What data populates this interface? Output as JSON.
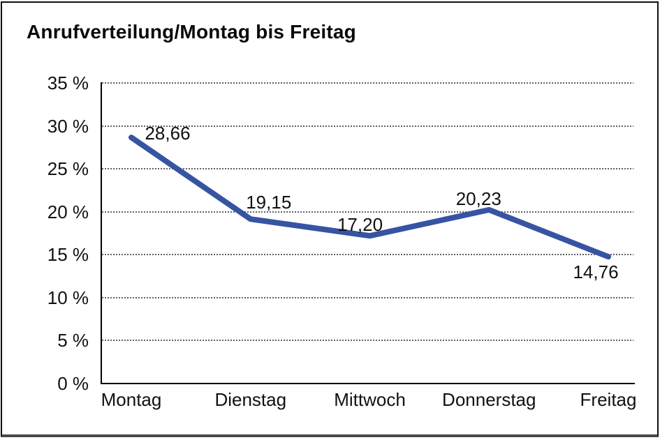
{
  "title": "Anrufverteilung/Montag bis Freitag",
  "colors": {
    "line": "#3754A3",
    "grid": "#5f5f5f",
    "axis": "#000000",
    "text": "#111111",
    "background": "#ffffff"
  },
  "chart_data": {
    "type": "line",
    "title": "Anrufverteilung/Montag bis Freitag",
    "categories": [
      "Montag",
      "Dienstag",
      "Mittwoch",
      "Donnerstag",
      "Freitag"
    ],
    "values": [
      28.66,
      19.15,
      17.2,
      20.23,
      14.76
    ],
    "value_labels": [
      "28,66",
      "19,15",
      "17,20",
      "20,23",
      "14,76"
    ],
    "ylabel": "%",
    "ylim": [
      0,
      35
    ],
    "ytick_step": 5,
    "ytick_values": [
      35,
      30,
      25,
      20,
      15,
      10,
      5,
      0
    ],
    "ytick_labels": [
      "35 %",
      "30 %",
      "25 %",
      "20 %",
      "15 %",
      "10 %",
      "5 %",
      "0 %"
    ],
    "grid": true,
    "gridline_style": "dotted",
    "legend": false,
    "line_width": 8
  }
}
